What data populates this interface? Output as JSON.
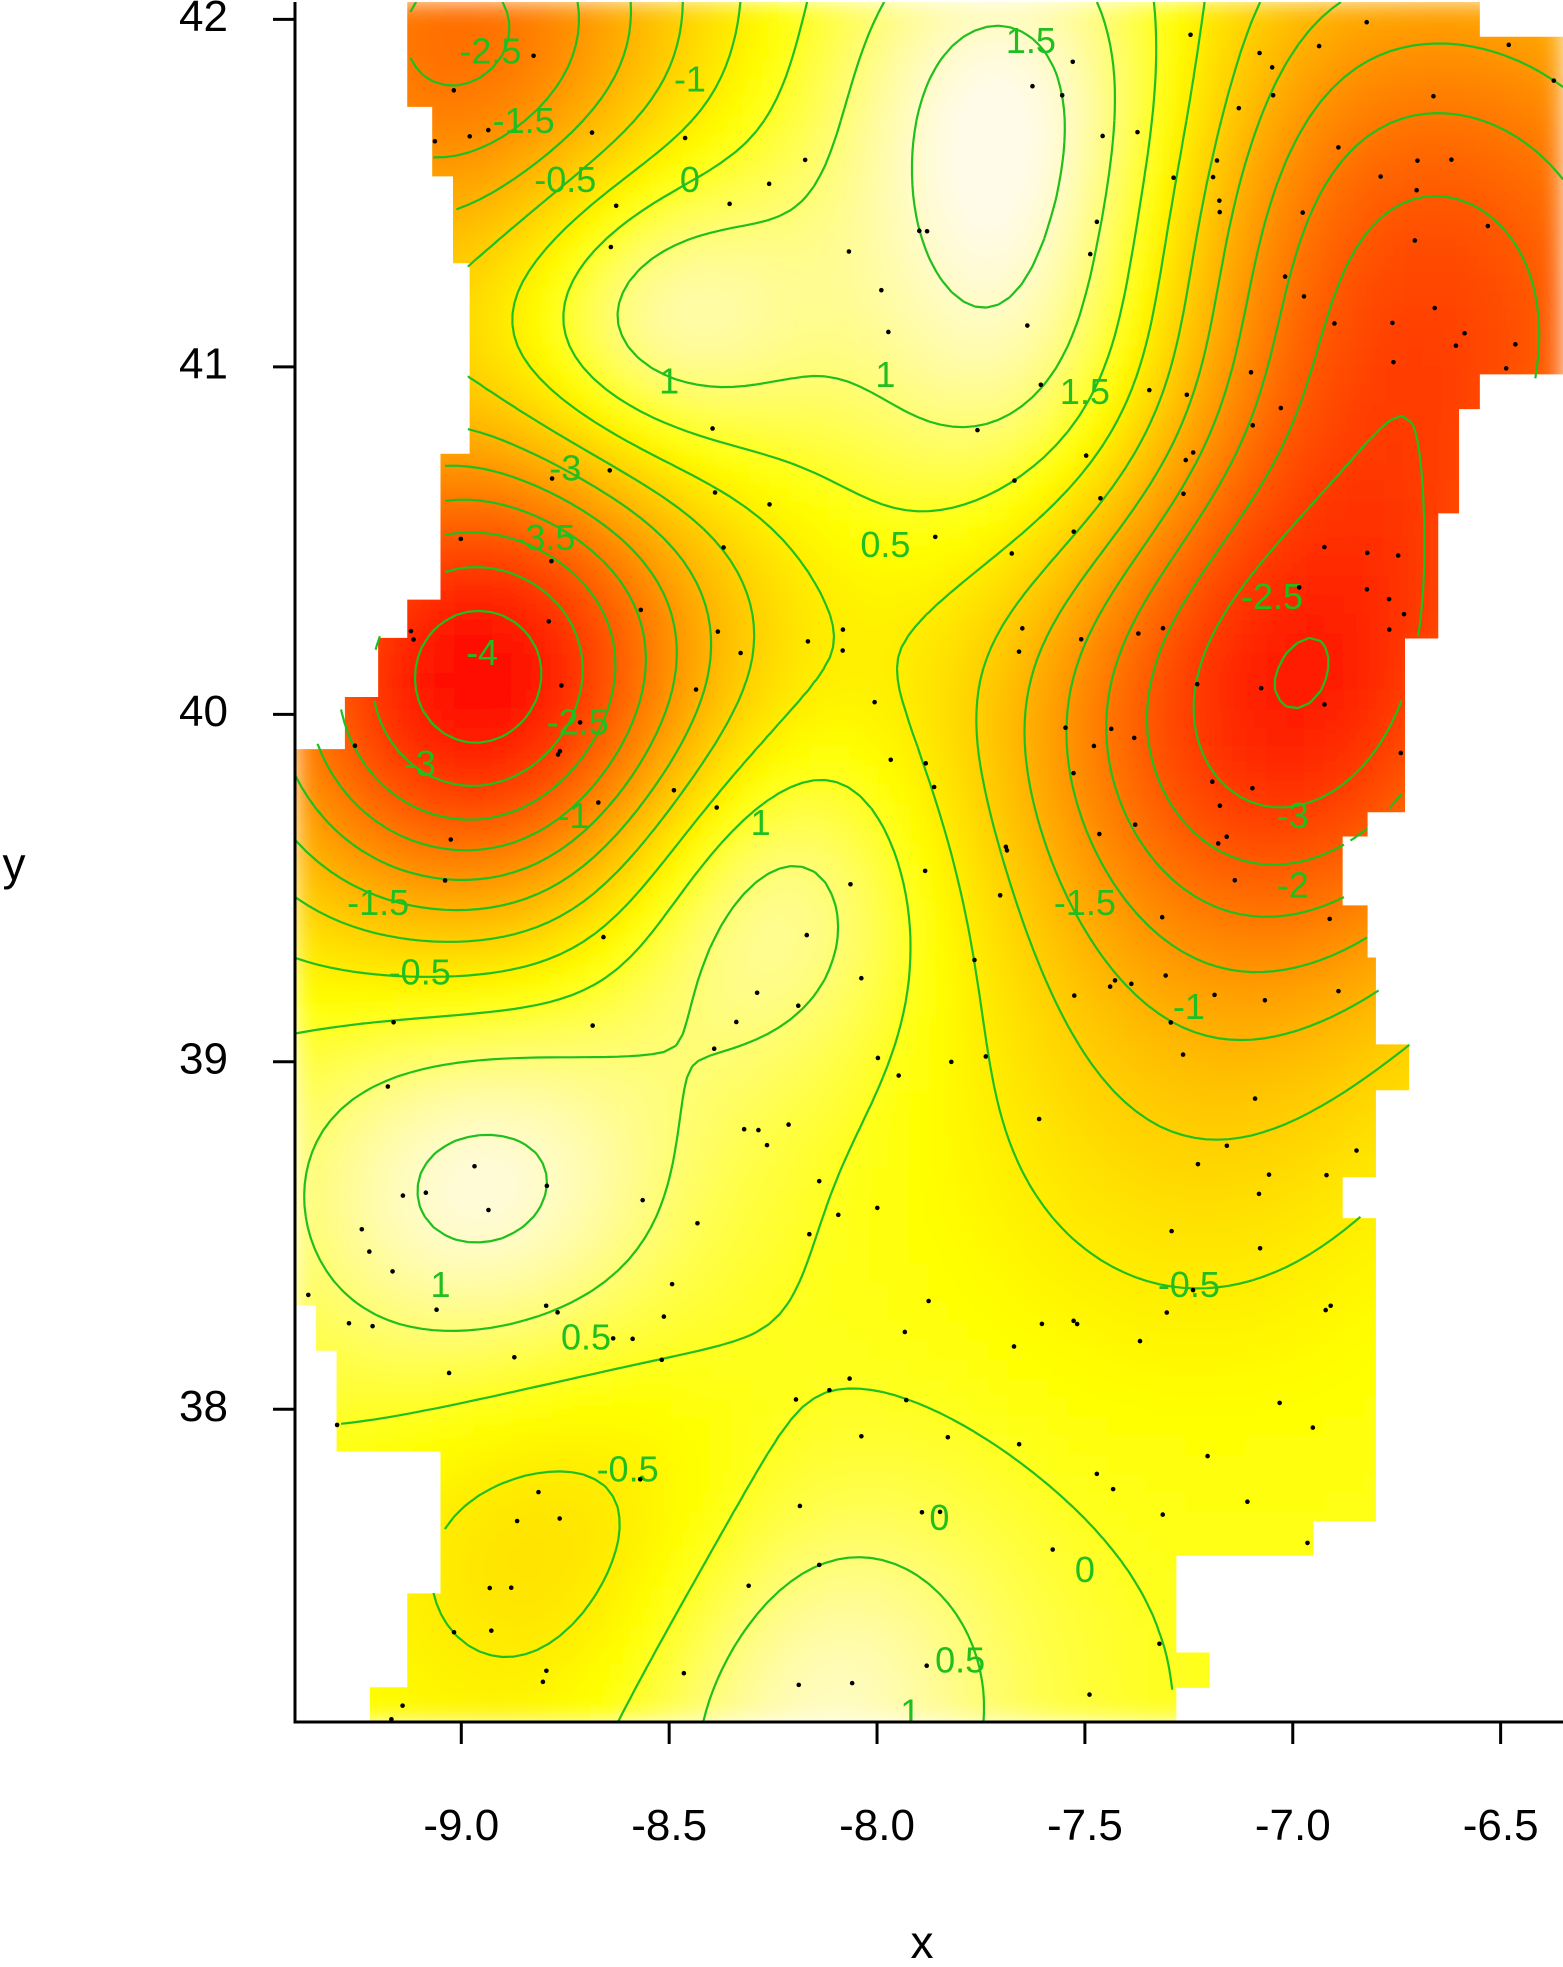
{
  "chart_data": {
    "type": "heatmap",
    "subtype": "interpolated contour map with sample points",
    "xlabel": "x",
    "ylabel": "y",
    "xlim": [
      -9.4,
      -6.35
    ],
    "ylim": [
      37.1,
      42.05
    ],
    "xticks": [
      {
        "value": -9.0,
        "label": "-9.0"
      },
      {
        "value": -8.5,
        "label": "-8.5"
      },
      {
        "value": -8.0,
        "label": "-8.0"
      },
      {
        "value": -7.5,
        "label": "-7.5"
      },
      {
        "value": -7.0,
        "label": "-7.0"
      },
      {
        "value": -6.5,
        "label": "-6.5"
      }
    ],
    "yticks": [
      {
        "value": 38,
        "label": "38"
      },
      {
        "value": 39,
        "label": "39"
      },
      {
        "value": 40,
        "label": "40"
      },
      {
        "value": 41,
        "label": "41"
      },
      {
        "value": 42,
        "label": "42"
      }
    ],
    "colors": {
      "high": "#fffbe8",
      "mid": "#ffff00",
      "low": "#ff0000",
      "contour": "#1fbf1f",
      "points": "#000000"
    },
    "field_centers": [
      {
        "x": -7.62,
        "y": 41.75,
        "value": 1.7,
        "s": 0.35
      },
      {
        "x": -8.55,
        "y": 41.15,
        "value": 1.4,
        "s": 0.28
      },
      {
        "x": -7.55,
        "y": 40.95,
        "value": 1.55,
        "s": 0.35
      },
      {
        "x": -8.3,
        "y": 39.5,
        "value": 1.15,
        "s": 0.3
      },
      {
        "x": -8.95,
        "y": 38.65,
        "value": 1.25,
        "s": 0.35
      },
      {
        "x": -8.15,
        "y": 37.15,
        "value": 1.1,
        "s": 0.35
      },
      {
        "x": -8.95,
        "y": 40.1,
        "value": -4.3,
        "s": 0.4
      },
      {
        "x": -7.05,
        "y": 39.95,
        "value": -3.2,
        "s": 0.45
      },
      {
        "x": -6.7,
        "y": 41.2,
        "value": -3.2,
        "s": 0.6
      },
      {
        "x": -9.0,
        "y": 41.95,
        "value": -2.6,
        "s": 0.4
      },
      {
        "x": -8.75,
        "y": 37.6,
        "value": -0.8,
        "s": 0.35
      },
      {
        "x": -7.25,
        "y": 38.8,
        "value": -0.6,
        "s": 0.4
      }
    ],
    "contour_levels": [
      -4,
      -3.5,
      -3,
      -2.5,
      -2,
      -1.5,
      -1,
      -0.5,
      0,
      0.5,
      1,
      1.5
    ],
    "contour_labels": [
      {
        "x": -8.93,
        "y": 41.9,
        "text": "-2.5"
      },
      {
        "x": -8.45,
        "y": 41.82,
        "text": "-1"
      },
      {
        "x": -8.85,
        "y": 41.7,
        "text": "-1.5"
      },
      {
        "x": -8.75,
        "y": 41.53,
        "text": "-0.5"
      },
      {
        "x": -8.45,
        "y": 41.53,
        "text": "0"
      },
      {
        "x": -7.63,
        "y": 41.93,
        "text": "1.5"
      },
      {
        "x": -8.5,
        "y": 40.95,
        "text": "1"
      },
      {
        "x": -7.98,
        "y": 40.97,
        "text": "1"
      },
      {
        "x": -7.5,
        "y": 40.92,
        "text": "1.5"
      },
      {
        "x": -7.98,
        "y": 40.48,
        "text": "0.5"
      },
      {
        "x": -8.75,
        "y": 40.7,
        "text": "-3"
      },
      {
        "x": -8.8,
        "y": 40.5,
        "text": "-3.5"
      },
      {
        "x": -8.95,
        "y": 40.17,
        "text": "-4"
      },
      {
        "x": -8.72,
        "y": 39.97,
        "text": "-2.5"
      },
      {
        "x": -9.1,
        "y": 39.85,
        "text": "-3"
      },
      {
        "x": -8.73,
        "y": 39.7,
        "text": "-1"
      },
      {
        "x": -8.28,
        "y": 39.68,
        "text": "1"
      },
      {
        "x": -9.2,
        "y": 39.45,
        "text": "-1.5"
      },
      {
        "x": -9.1,
        "y": 39.25,
        "text": "-0.5"
      },
      {
        "x": -7.05,
        "y": 40.33,
        "text": "-2.5"
      },
      {
        "x": -7.0,
        "y": 39.7,
        "text": "-3"
      },
      {
        "x": -7.0,
        "y": 39.5,
        "text": "-2"
      },
      {
        "x": -7.5,
        "y": 39.45,
        "text": "-1.5"
      },
      {
        "x": -7.25,
        "y": 39.15,
        "text": "-1"
      },
      {
        "x": -9.05,
        "y": 38.35,
        "text": "1"
      },
      {
        "x": -8.7,
        "y": 38.2,
        "text": "0.5"
      },
      {
        "x": -7.25,
        "y": 38.35,
        "text": "-0.5"
      },
      {
        "x": -8.6,
        "y": 37.82,
        "text": "-0.5"
      },
      {
        "x": -7.85,
        "y": 37.68,
        "text": "0"
      },
      {
        "x": -7.5,
        "y": 37.53,
        "text": "0"
      },
      {
        "x": -7.8,
        "y": 37.27,
        "text": "0.5"
      },
      {
        "x": -7.92,
        "y": 37.12,
        "text": "1"
      }
    ],
    "region_rows": [
      {
        "y0": 41.95,
        "y1": 42.05,
        "x0": -9.13,
        "x1": -6.55
      },
      {
        "y0": 41.75,
        "y1": 41.95,
        "x0": -9.13,
        "x1": -6.35
      },
      {
        "y0": 41.55,
        "y1": 41.75,
        "x0": -9.07,
        "x1": -6.35
      },
      {
        "y0": 41.3,
        "y1": 41.55,
        "x0": -9.02,
        "x1": -6.35
      },
      {
        "y0": 40.98,
        "y1": 41.3,
        "x0": -8.98,
        "x1": -6.35
      },
      {
        "y0": 40.88,
        "y1": 40.98,
        "x0": -8.98,
        "x1": -6.55
      },
      {
        "y0": 40.75,
        "y1": 40.88,
        "x0": -8.98,
        "x1": -6.6
      },
      {
        "y0": 40.58,
        "y1": 40.75,
        "x0": -9.05,
        "x1": -6.6
      },
      {
        "y0": 40.33,
        "y1": 40.58,
        "x0": -9.05,
        "x1": -6.65
      },
      {
        "y0": 40.22,
        "y1": 40.33,
        "x0": -9.13,
        "x1": -6.65
      },
      {
        "y0": 40.05,
        "y1": 40.22,
        "x0": -9.2,
        "x1": -6.73
      },
      {
        "y0": 39.9,
        "y1": 40.05,
        "x0": -9.28,
        "x1": -6.73
      },
      {
        "y0": 39.72,
        "y1": 39.9,
        "x0": -9.4,
        "x1": -6.73
      },
      {
        "y0": 39.65,
        "y1": 39.72,
        "x0": -9.4,
        "x1": -6.82
      },
      {
        "y0": 39.45,
        "y1": 39.65,
        "x0": -9.4,
        "x1": -6.88
      },
      {
        "y0": 39.3,
        "y1": 39.45,
        "x0": -9.4,
        "x1": -6.82
      },
      {
        "y0": 39.05,
        "y1": 39.3,
        "x0": -9.4,
        "x1": -6.8
      },
      {
        "y0": 38.92,
        "y1": 39.05,
        "x0": -9.4,
        "x1": -6.72
      },
      {
        "y0": 38.67,
        "y1": 38.92,
        "x0": -9.4,
        "x1": -6.8
      },
      {
        "y0": 38.55,
        "y1": 38.67,
        "x0": -9.4,
        "x1": -6.88
      },
      {
        "y0": 38.3,
        "y1": 38.55,
        "x0": -9.4,
        "x1": -6.8
      },
      {
        "y0": 38.17,
        "y1": 38.3,
        "x0": -9.35,
        "x1": -6.8
      },
      {
        "y0": 38.03,
        "y1": 38.17,
        "x0": -9.3,
        "x1": -6.8
      },
      {
        "y0": 37.88,
        "y1": 38.03,
        "x0": -9.3,
        "x1": -6.8
      },
      {
        "y0": 37.68,
        "y1": 37.88,
        "x0": -9.05,
        "x1": -6.8
      },
      {
        "y0": 37.58,
        "y1": 37.68,
        "x0": -9.05,
        "x1": -6.95
      },
      {
        "y0": 37.47,
        "y1": 37.58,
        "x0": -9.05,
        "x1": -7.28
      },
      {
        "y0": 37.3,
        "y1": 37.47,
        "x0": -9.13,
        "x1": -7.28
      },
      {
        "y0": 37.2,
        "y1": 37.3,
        "x0": -9.13,
        "x1": -7.2
      },
      {
        "y0": 37.1,
        "y1": 37.2,
        "x0": -9.22,
        "x1": -7.28
      }
    ]
  }
}
